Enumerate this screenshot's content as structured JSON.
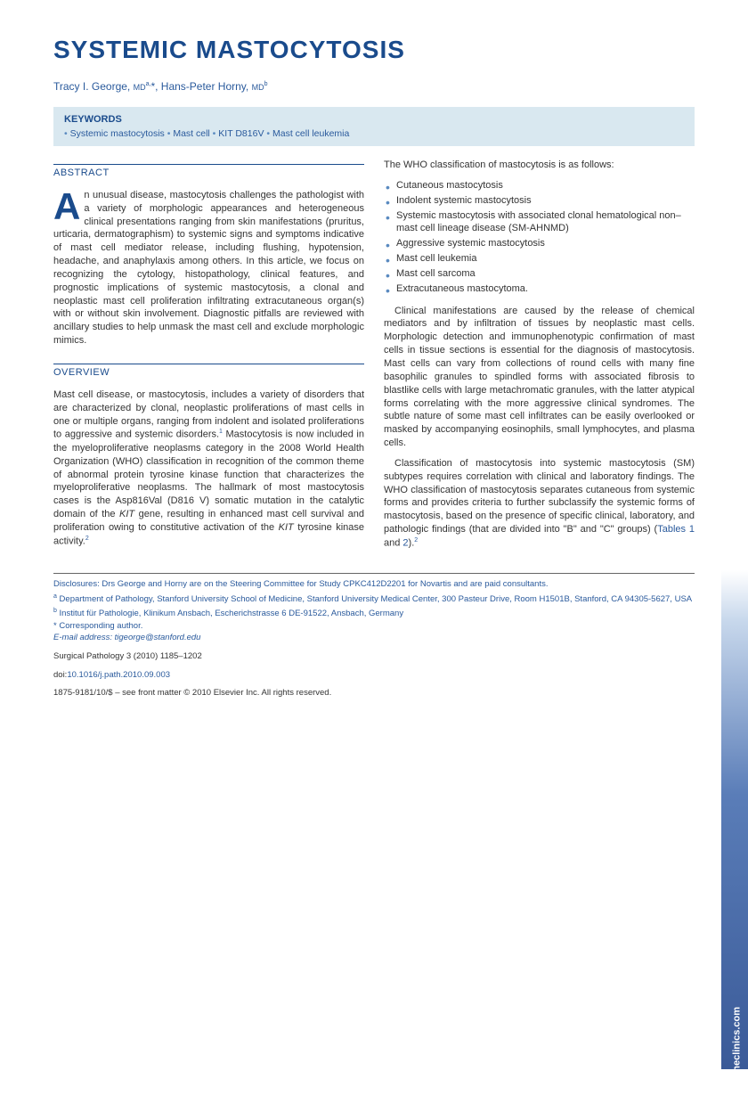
{
  "title": "SYSTEMIC MASTOCYTOSIS",
  "authors_html": "Tracy I. George, <span class='small'>MD</span><span class='sup'>a,</span>*, Hans-Peter Horny, <span class='small'>MD</span><span class='sup'>b</span>",
  "keywords": {
    "title": "KEYWORDS",
    "items": [
      "Systemic mastocytosis",
      "Mast cell",
      "KIT D816V",
      "Mast cell leukemia"
    ]
  },
  "sections": {
    "abstract": {
      "header": "ABSTRACT",
      "text": "n unusual disease, mastocytosis challenges the pathologist with a variety of morphologic appearances and heterogeneous clinical presentations ranging from skin manifestations (pruritus, urticaria, dermatographism) to systemic signs and symptoms indicative of mast cell mediator release, including flushing, hypotension, headache, and anaphylaxis among others. In this article, we focus on recognizing the cytology, histopathology, clinical features, and prognostic implications of systemic mastocytosis, a clonal and neoplastic mast cell proliferation infiltrating extracutaneous organ(s) with or without skin involvement. Diagnostic pitfalls are reviewed with ancillary studies to help unmask the mast cell and exclude morphologic mimics."
    },
    "overview": {
      "header": "OVERVIEW",
      "p1": "Mast cell disease, or mastocytosis, includes a variety of disorders that are characterized by clonal, neoplastic proliferations of mast cells in one or multiple organs, ranging from indolent and isolated proliferations to aggressive and systemic disorders.",
      "p1_cont": " Mastocytosis is now included in the myeloproliferative neoplasms category in the 2008 World Health Organization (WHO) classification in recognition of the common theme of abnormal protein tyrosine kinase function that characterizes the myeloproliferative neoplasms. The hallmark of most mastocytosis cases is the Asp816Val (D816 V) somatic mutation in the catalytic domain of the ",
      "p1_kit": "KIT",
      "p1_end": " gene, resulting in enhanced mast cell survival and proliferation owing to constitutive activation of the ",
      "p1_kit2": "KIT",
      "p1_final": " tyrosine kinase activity."
    },
    "right_col": {
      "intro": "The WHO classification of mastocytosis is as follows:",
      "classification": [
        "Cutaneous mastocytosis",
        "Indolent systemic mastocytosis",
        "Systemic mastocytosis with associated clonal hematological non–mast cell lineage disease (SM-AHNMD)",
        "Aggressive systemic mastocytosis",
        "Mast cell leukemia",
        "Mast cell sarcoma",
        "Extracutaneous mastocytoma."
      ],
      "p2": "Clinical manifestations are caused by the release of chemical mediators and by infiltration of tissues by neoplastic mast cells. Morphologic detection and immunophenotypic confirmation of mast cells in tissue sections is essential for the diagnosis of mastocytosis. Mast cells can vary from collections of round cells with many fine basophilic granules to spindled forms with associated fibrosis to blastlike cells with large metachromatic granules, with the latter atypical forms correlating with the more aggressive clinical syndromes. The subtle nature of some mast cell infiltrates can be easily overlooked or masked by accompanying eosinophils, small lymphocytes, and plasma cells.",
      "p3_start": "Classification of mastocytosis into systemic mastocytosis (SM) subtypes requires correlation with clinical and laboratory findings. The WHO classification of mastocytosis separates cutaneous from systemic forms and provides criteria to further subclassify the systemic forms of mastocytosis, based on the presence of specific clinical, laboratory, and pathologic findings (that are divided into \"B\" and \"C\" groups) (",
      "p3_tables": "Tables 1",
      "p3_and": " and ",
      "p3_tables2": "2",
      "p3_end": ")."
    }
  },
  "footer": {
    "disclosure": "Disclosures: Drs George and Horny are on the Steering Committee for Study CPKC412D2201 for Novartis and are paid consultants.",
    "affil_a": "Department of Pathology, Stanford University School of Medicine, Stanford University Medical Center, 300 Pasteur Drive, Room H1501B, Stanford, CA 94305-5627, USA",
    "affil_b": "Institut für Pathologie, Klinikum Ansbach, Escherichstrasse 6 DE-91522, Ansbach, Germany",
    "corresponding": "* Corresponding author.",
    "email_label": "E-mail address:",
    "email": "tigeorge@stanford.edu",
    "journal": "Surgical Pathology 3 (2010) 1185–1202",
    "doi_label": "doi:",
    "doi": "10.1016/j.path.2010.09.003",
    "copyright": "1875-9181/10/$ – see front matter © 2010 Elsevier Inc. All rights reserved."
  },
  "side_tab": "surgpath.theclinics.com",
  "colors": {
    "primary_blue": "#1a4b8c",
    "link_blue": "#2a5a9c",
    "keywords_bg": "#d9e8f0",
    "bullet_blue": "#5a8ac0"
  }
}
